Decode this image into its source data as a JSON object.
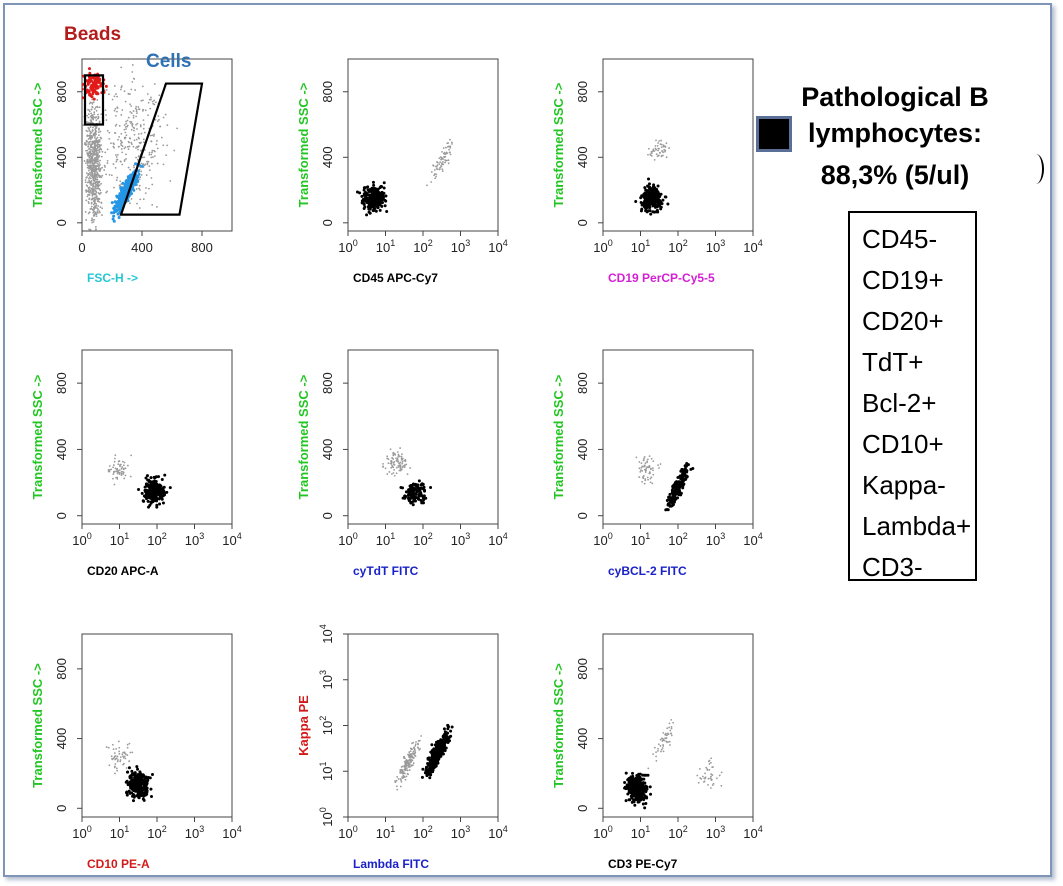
{
  "colors": {
    "axis_green": "#22c622",
    "cyan": "#26c6d6",
    "magenta": "#d41fd4",
    "blue": "#1a22c8",
    "red": "#d21a1a",
    "black": "#000000",
    "beads": "#b41c1c",
    "cells": "#2f72b4",
    "red_events": "#e21a1a",
    "blue_events": "#2596e6",
    "gray_events": "#9a9a9a"
  },
  "gate_labels": {
    "beads": "Beads",
    "cells": "Cells"
  },
  "result": {
    "line1": "Pathological B",
    "line2": "lymphocytes:",
    "line3": "88,3% (5/ul)",
    "legend_icon": "black-square-icon"
  },
  "markers": [
    "CD45-",
    "CD19+",
    "CD20+",
    "TdT+",
    "Bcl-2+",
    "CD10+",
    "Kappa-",
    "Lambda+",
    "CD3-"
  ],
  "chart_data": [
    {
      "type": "scatter",
      "id": "fsc-ssc",
      "xlabel": "FSC-H ->",
      "xlabel_color": "cyan",
      "ylabel": "Transformed SSC ->",
      "ylabel_color": "axis_green",
      "xscale": "linear",
      "xlim": [
        0,
        1000
      ],
      "xticks": [
        "0",
        "400",
        "800"
      ],
      "yscale": "linear",
      "ylim": [
        -50,
        1000
      ],
      "yticks": [
        "0",
        "400",
        "800"
      ],
      "gates": [
        {
          "name": "Beads",
          "x": [
            20,
            20,
            140,
            140
          ],
          "y": [
            600,
            900,
            900,
            600
          ]
        },
        {
          "name": "Cells",
          "x": [
            260,
            560,
            800,
            650
          ],
          "y": [
            50,
            850,
            850,
            50
          ]
        }
      ],
      "populations": [
        {
          "label": "gray",
          "color": "gray_events",
          "shape": "column",
          "cx": 80,
          "cy": 350,
          "count": 700
        },
        {
          "label": "gray",
          "color": "gray_events",
          "shape": "band",
          "cx": 350,
          "cy": 500,
          "count": 320
        },
        {
          "label": "Cells",
          "color": "blue_events",
          "shape": "diagonal",
          "cx": 300,
          "cy": 200,
          "count": 420
        },
        {
          "label": "Beads",
          "color": "red_events",
          "shape": "blob",
          "cx": 80,
          "cy": 840,
          "count": 90
        }
      ]
    },
    {
      "type": "scatter",
      "id": "cd45",
      "xlabel": "CD45 APC-Cy7",
      "xlabel_color": "black",
      "ylabel": "Transformed SSC ->",
      "ylabel_color": "axis_green",
      "xscale": "log",
      "xlim": [
        0,
        4
      ],
      "xticks": [
        "10^0",
        "10^1",
        "10^2",
        "10^3",
        "10^4"
      ],
      "yscale": "linear",
      "ylim": [
        -50,
        1000
      ],
      "yticks": [
        "0",
        "400",
        "800"
      ],
      "populations": [
        {
          "label": "pathological",
          "color": "black",
          "shape": "blob",
          "cx": 0.7,
          "cy": 150,
          "count": 260
        },
        {
          "label": "other",
          "color": "gray_events",
          "shape": "diagonal",
          "cx": 2.5,
          "cy": 380,
          "count": 70
        }
      ]
    },
    {
      "type": "scatter",
      "id": "cd19",
      "xlabel": "CD19 PerCP-Cy5-5",
      "xlabel_color": "magenta",
      "ylabel": "Transformed SSC ->",
      "ylabel_color": "axis_green",
      "xscale": "log",
      "xlim": [
        0,
        4
      ],
      "xticks": [
        "10^0",
        "10^1",
        "10^2",
        "10^3",
        "10^4"
      ],
      "yscale": "linear",
      "ylim": [
        -50,
        1000
      ],
      "yticks": [
        "0",
        "400",
        "800"
      ],
      "populations": [
        {
          "label": "pathological",
          "color": "black",
          "shape": "blob",
          "cx": 1.3,
          "cy": 150,
          "count": 260
        },
        {
          "label": "other",
          "color": "gray_events",
          "shape": "blob",
          "cx": 1.5,
          "cy": 450,
          "count": 50
        }
      ]
    },
    {
      "type": "scatter",
      "id": "cd20",
      "xlabel": "CD20 APC-A",
      "xlabel_color": "black",
      "ylabel": "Transformed SSC ->",
      "ylabel_color": "axis_green",
      "xscale": "log",
      "xlim": [
        0,
        4
      ],
      "xticks": [
        "10^0",
        "10^1",
        "10^2",
        "10^3",
        "10^4"
      ],
      "yscale": "linear",
      "ylim": [
        -50,
        1000
      ],
      "yticks": [
        "0",
        "400",
        "800"
      ],
      "populations": [
        {
          "label": "pathological",
          "color": "black",
          "shape": "blob",
          "cx": 1.9,
          "cy": 150,
          "count": 220
        },
        {
          "label": "other",
          "color": "gray_events",
          "shape": "blob",
          "cx": 1.0,
          "cy": 280,
          "count": 60
        }
      ]
    },
    {
      "type": "scatter",
      "id": "tdt",
      "xlabel": "cyTdT FITC",
      "xlabel_color": "blue",
      "ylabel": "Transformed SSC ->",
      "ylabel_color": "axis_green",
      "xscale": "log",
      "xlim": [
        0,
        4
      ],
      "xticks": [
        "10^0",
        "10^1",
        "10^2",
        "10^3",
        "10^4"
      ],
      "yscale": "linear",
      "ylim": [
        -50,
        1000
      ],
      "yticks": [
        "0",
        "400",
        "800"
      ],
      "populations": [
        {
          "label": "pathological",
          "color": "black",
          "shape": "blob",
          "cx": 1.8,
          "cy": 140,
          "count": 110
        },
        {
          "label": "other",
          "color": "gray_events",
          "shape": "blob",
          "cx": 1.3,
          "cy": 330,
          "count": 90
        }
      ]
    },
    {
      "type": "scatter",
      "id": "bcl2",
      "xlabel": "cyBCL-2 FITC",
      "xlabel_color": "blue",
      "ylabel": "Transformed SSC ->",
      "ylabel_color": "axis_green",
      "xscale": "log",
      "xlim": [
        0,
        4
      ],
      "xticks": [
        "10^0",
        "10^1",
        "10^2",
        "10^3",
        "10^4"
      ],
      "yscale": "linear",
      "ylim": [
        -50,
        1000
      ],
      "yticks": [
        "0",
        "400",
        "800"
      ],
      "populations": [
        {
          "label": "pathological",
          "color": "black",
          "shape": "diagonal",
          "cx": 2.0,
          "cy": 170,
          "count": 170
        },
        {
          "label": "other",
          "color": "gray_events",
          "shape": "blob",
          "cx": 1.2,
          "cy": 280,
          "count": 60
        }
      ]
    },
    {
      "type": "scatter",
      "id": "cd10",
      "xlabel": "CD10 PE-A",
      "xlabel_color": "red",
      "ylabel": "Transformed SSC ->",
      "ylabel_color": "axis_green",
      "xscale": "log",
      "xlim": [
        0,
        4
      ],
      "xticks": [
        "10^0",
        "10^1",
        "10^2",
        "10^3",
        "10^4"
      ],
      "yscale": "linear",
      "ylim": [
        -50,
        1000
      ],
      "yticks": [
        "0",
        "400",
        "800"
      ],
      "populations": [
        {
          "label": "pathological",
          "color": "black",
          "shape": "blob",
          "cx": 1.5,
          "cy": 140,
          "count": 260
        },
        {
          "label": "other",
          "color": "gray_events",
          "shape": "blob",
          "cx": 1.0,
          "cy": 300,
          "count": 55
        }
      ]
    },
    {
      "type": "scatter",
      "id": "kappa-lambda",
      "xlabel": "Lambda FITC",
      "xlabel_color": "blue",
      "ylabel": "Kappa PE",
      "ylabel_color": "red",
      "xscale": "log",
      "xlim": [
        0,
        4
      ],
      "xticks": [
        "10^0",
        "10^1",
        "10^2",
        "10^3",
        "10^4"
      ],
      "yscale": "log",
      "ylim": [
        0,
        4
      ],
      "yticks": [
        "10^0",
        "10^1",
        "10^2",
        "10^3",
        "10^4"
      ],
      "populations": [
        {
          "label": "pathological",
          "color": "black",
          "shape": "diagonal",
          "cx": 2.4,
          "cy": 1.4,
          "count": 360
        },
        {
          "label": "other",
          "color": "gray_events",
          "shape": "diagonal",
          "cx": 1.6,
          "cy": 1.2,
          "count": 160
        }
      ]
    },
    {
      "type": "scatter",
      "id": "cd3",
      "xlabel": "CD3 PE-Cy7",
      "xlabel_color": "black",
      "ylabel": "Transformed SSC ->",
      "ylabel_color": "axis_green",
      "xscale": "log",
      "xlim": [
        0,
        4
      ],
      "xticks": [
        "10^0",
        "10^1",
        "10^2",
        "10^3",
        "10^4"
      ],
      "yscale": "linear",
      "ylim": [
        -50,
        1000
      ],
      "yticks": [
        "0",
        "400",
        "800"
      ],
      "populations": [
        {
          "label": "pathological",
          "color": "black",
          "shape": "blob",
          "cx": 0.9,
          "cy": 120,
          "count": 300
        },
        {
          "label": "other",
          "color": "gray_events",
          "shape": "blob",
          "cx": 2.9,
          "cy": 200,
          "count": 40
        },
        {
          "label": "other",
          "color": "gray_events",
          "shape": "diagonal",
          "cx": 1.6,
          "cy": 380,
          "count": 50
        }
      ]
    }
  ]
}
